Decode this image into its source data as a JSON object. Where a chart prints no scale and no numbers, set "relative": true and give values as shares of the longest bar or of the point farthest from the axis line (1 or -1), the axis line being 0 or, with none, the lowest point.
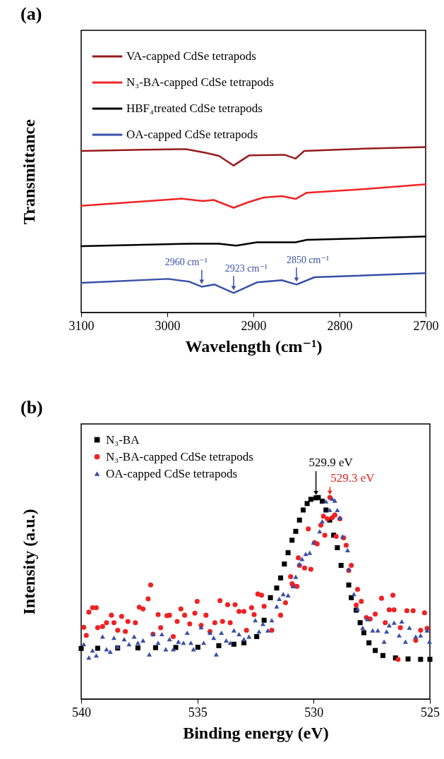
{
  "chart_data": [
    {
      "type": "line",
      "title": "(a)",
      "xlabel": "Wavelength (cm⁻¹)",
      "ylabel": "Transmittance",
      "relative": true,
      "xlim": [
        3100,
        2700
      ],
      "xticks": [
        3100,
        3000,
        2900,
        2800,
        2700
      ],
      "legend": "top left",
      "series": [
        {
          "name": "VA-capped CdSe tetrapods",
          "color": "#951c1c",
          "x": [
            3100,
            3028,
            2978,
            2955,
            2940,
            2923,
            2905,
            2864,
            2851,
            2841,
            2765,
            2700
          ],
          "values": [
            0.976,
            0.984,
            0.987,
            0.964,
            0.946,
            0.888,
            0.949,
            0.953,
            0.93,
            0.976,
            0.991,
            1.0
          ]
        },
        {
          "name": "N₃-BA-capped CdSe tetrapods",
          "color": "#ee2424",
          "x": [
            3100,
            2984,
            2959,
            2946,
            2923,
            2905,
            2888,
            2867,
            2851,
            2838,
            2765,
            2700
          ],
          "values": [
            0.645,
            0.688,
            0.673,
            0.68,
            0.633,
            0.668,
            0.695,
            0.703,
            0.686,
            0.724,
            0.748,
            0.775
          ]
        },
        {
          "name": "HBF₄treated CdSe tetrapods",
          "color": "#000000",
          "x": [
            3100,
            2970,
            2940,
            2920,
            2896,
            2851,
            2838,
            2700
          ],
          "values": [
            0.401,
            0.416,
            0.416,
            0.404,
            0.424,
            0.424,
            0.439,
            0.459
          ]
        },
        {
          "name": "OA-capped CdSe tetrapods",
          "color": "#3850a8",
          "x": [
            3100,
            2999,
            2975,
            2960,
            2945,
            2923,
            2896,
            2867,
            2850,
            2829,
            2700
          ],
          "values": [
            0.179,
            0.203,
            0.187,
            0.156,
            0.169,
            0.118,
            0.182,
            0.195,
            0.169,
            0.213,
            0.238
          ]
        }
      ],
      "annotations": [
        {
          "text": "2960 cm⁻¹",
          "x": 2960,
          "y": 0.156
        },
        {
          "text": "2923 cm⁻¹",
          "x": 2923,
          "y": 0.118
        },
        {
          "text": "2850 cm⁻¹",
          "x": 2850,
          "y": 0.169
        }
      ]
    },
    {
      "type": "scatter",
      "title": "(b)",
      "xlabel": "Binding energy (eV)",
      "ylabel": "Intensity (a.u.)",
      "relative": true,
      "xlim": [
        540,
        525
      ],
      "xticks": [
        540,
        535,
        530,
        525
      ],
      "legend": "top left",
      "series": [
        {
          "name": "N₃-BA",
          "color": "#000000",
          "marker": "square",
          "x": [
            540.0,
            539.29,
            538.43,
            537.56,
            536.8,
            535.93,
            534.98,
            534.08,
            533.43,
            533.0,
            532.45,
            532.13,
            531.86,
            531.59,
            531.42,
            531.26,
            531.1,
            530.93,
            530.77,
            530.61,
            530.45,
            530.28,
            530.12,
            529.9,
            529.8,
            529.63,
            529.47,
            529.31,
            529.14,
            528.98,
            528.82,
            528.49,
            528.38,
            528.17,
            528.0,
            527.84,
            527.62,
            527.35,
            527.02,
            526.48,
            525.94,
            525.4,
            525.0
          ],
          "values": [
            0.251,
            0.252,
            0.253,
            0.254,
            0.255,
            0.256,
            0.257,
            0.265,
            0.272,
            0.279,
            0.31,
            0.391,
            0.503,
            0.551,
            0.601,
            0.67,
            0.726,
            0.788,
            0.832,
            0.888,
            0.938,
            0.97,
            0.991,
            0.998,
            1.0,
            0.982,
            0.938,
            0.888,
            0.813,
            0.751,
            0.663,
            0.566,
            0.503,
            0.441,
            0.379,
            0.329,
            0.279,
            0.241,
            0.216,
            0.204,
            0.199,
            0.197,
            0.197
          ]
        },
        {
          "name": "N₃-BA-capped CdSe tetrapods",
          "color": "#ee2222",
          "marker": "circle",
          "x": [
            539.89,
            539.78,
            539.67,
            539.51,
            539.35,
            539.29,
            539.08,
            538.91,
            538.7,
            538.59,
            538.43,
            538.26,
            538.1,
            537.99,
            537.67,
            537.5,
            537.34,
            537.12,
            537.01,
            536.91,
            536.69,
            536.58,
            536.31,
            536.2,
            536.04,
            535.87,
            535.71,
            535.55,
            535.33,
            535.11,
            535.01,
            534.84,
            534.63,
            534.46,
            534.25,
            534.03,
            533.92,
            533.7,
            533.59,
            533.38,
            533.21,
            533.0,
            532.89,
            532.67,
            532.56,
            532.4,
            532.24,
            532.13,
            531.8,
            531.42,
            531.21,
            530.99,
            530.93,
            530.88,
            530.72,
            530.66,
            530.61,
            530.39,
            530.23,
            530.12,
            529.96,
            529.85,
            529.69,
            529.58,
            529.52,
            529.41,
            529.3,
            529.2,
            529.09,
            529.03,
            528.87,
            528.71,
            528.6,
            528.49,
            528.38,
            528.11,
            528.17,
            527.95,
            527.73,
            527.57,
            527.35,
            527.08,
            526.92,
            526.75,
            526.59,
            526.54,
            526.37,
            526.27,
            525.99,
            525.72,
            525.61,
            525.4,
            525.23,
            525.12
          ],
          "values": [
            0.356,
            0.316,
            0.431,
            0.453,
            0.453,
            0.354,
            0.36,
            0.379,
            0.416,
            0.379,
            0.341,
            0.41,
            0.335,
            0.385,
            0.379,
            0.456,
            0.447,
            0.497,
            0.566,
            0.322,
            0.419,
            0.354,
            0.414,
            0.416,
            0.31,
            0.385,
            0.447,
            0.416,
            0.373,
            0.426,
            0.485,
            0.366,
            0.416,
            0.335,
            0.379,
            0.488,
            0.385,
            0.468,
            0.379,
            0.468,
            0.435,
            0.435,
            0.341,
            0.453,
            0.419,
            0.521,
            0.515,
            0.46,
            0.341,
            0.416,
            0.478,
            0.607,
            0.572,
            0.563,
            0.559,
            0.701,
            0.663,
            0.65,
            0.844,
            0.644,
            0.776,
            0.77,
            0.863,
            0.907,
            0.813,
            0.894,
            1.0,
            0.9,
            0.913,
            0.807,
            0.894,
            0.8,
            0.763,
            0.638,
            0.663,
            0.544,
            0.466,
            0.485,
            0.404,
            0.397,
            0.422,
            0.5,
            0.379,
            0.443,
            0.515,
            0.443,
            0.197,
            0.354,
            0.438,
            0.438,
            0.291,
            0.341,
            0.428,
            0.351
          ]
        },
        {
          "name": "OA-capped CdSe tetrapods",
          "color": "#3a4fa5",
          "marker": "triangle",
          "x": [
            539.89,
            539.67,
            539.51,
            539.35,
            539.08,
            538.91,
            538.75,
            538.59,
            538.43,
            538.15,
            537.94,
            537.72,
            537.56,
            537.34,
            537.07,
            536.91,
            536.69,
            536.53,
            536.36,
            536.2,
            536.04,
            535.82,
            535.6,
            535.44,
            535.28,
            535.17,
            534.84,
            534.73,
            534.46,
            534.3,
            534.19,
            533.97,
            533.76,
            533.59,
            533.43,
            533.21,
            533.0,
            532.78,
            532.51,
            532.35,
            532.18,
            531.97,
            531.8,
            531.59,
            531.48,
            531.31,
            531.1,
            530.88,
            530.77,
            530.61,
            530.5,
            530.34,
            530.17,
            530.01,
            529.74,
            529.63,
            529.47,
            529.31,
            529.2,
            529.09,
            528.98,
            528.87,
            528.76,
            528.54,
            528.49,
            528.27,
            528.11,
            527.89,
            527.68,
            527.46,
            527.24,
            526.97,
            526.86,
            526.75,
            526.54,
            526.32,
            526.21,
            526.05,
            525.88,
            525.61,
            525.4,
            525.12,
            525.02
          ],
          "values": [
            0.272,
            0.206,
            0.241,
            0.216,
            0.31,
            0.247,
            0.235,
            0.304,
            0.26,
            0.297,
            0.272,
            0.31,
            0.279,
            0.291,
            0.222,
            0.322,
            0.279,
            0.322,
            0.247,
            0.297,
            0.247,
            0.285,
            0.279,
            0.329,
            0.279,
            0.247,
            0.356,
            0.279,
            0.329,
            0.304,
            0.222,
            0.329,
            0.291,
            0.279,
            0.341,
            0.322,
            0.297,
            0.31,
            0.391,
            0.335,
            0.373,
            0.341,
            0.391,
            0.46,
            0.497,
            0.521,
            0.515,
            0.56,
            0.607,
            0.67,
            0.695,
            0.72,
            0.726,
            0.776,
            0.832,
            0.882,
            0.981,
            0.938,
            0.994,
            0.985,
            0.938,
            0.9,
            0.807,
            0.739,
            0.644,
            0.521,
            0.447,
            0.354,
            0.397,
            0.341,
            0.341,
            0.285,
            0.335,
            0.366,
            0.379,
            0.316,
            0.385,
            0.285,
            0.354,
            0.31,
            0.316,
            0.341,
            0.285
          ]
        }
      ],
      "annotations": [
        {
          "text": "529.9 eV",
          "x": 529.9,
          "y": 0.998
        },
        {
          "text": "529.3 eV",
          "x": 529.3,
          "y": 1.0
        }
      ]
    }
  ]
}
